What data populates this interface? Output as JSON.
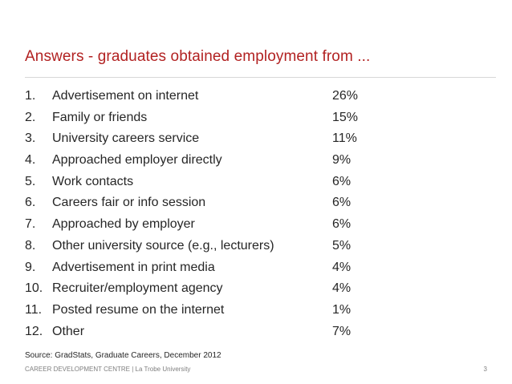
{
  "slide": {
    "title": "Answers - graduates obtained employment from ...",
    "items": [
      {
        "num": "1.",
        "label": "Advertisement on internet",
        "pct": "26%"
      },
      {
        "num": "2.",
        "label": "Family or friends",
        "pct": "15%"
      },
      {
        "num": "3.",
        "label": "University careers service",
        "pct": "11%"
      },
      {
        "num": "4.",
        "label": "Approached employer directly",
        "pct": "9%"
      },
      {
        "num": "5.",
        "label": "Work contacts",
        "pct": "6%"
      },
      {
        "num": "6.",
        "label": "Careers fair or info session",
        "pct": "6%"
      },
      {
        "num": "7.",
        "label": "Approached by employer",
        "pct": "6%"
      },
      {
        "num": "8.",
        "label": "Other university source (e.g., lecturers)",
        "pct": "5%"
      },
      {
        "num": "9.",
        "label": "Advertisement in print media",
        "pct": "4%"
      },
      {
        "num": "10.",
        "label": "Recruiter/employment agency",
        "pct": "4%"
      },
      {
        "num": "11.",
        "label": "Posted resume on the internet",
        "pct": "1%"
      },
      {
        "num": "12.",
        "label": "Other",
        "pct": "7%"
      }
    ],
    "source": "Source: GradStats, Graduate Careers, December 2012",
    "footer": "CAREER DEVELOPMENT CENTRE | La Trobe University",
    "page_number": "3"
  },
  "colors": {
    "title": "#b22222",
    "text": "#262626",
    "footer": "#7f7f7f"
  }
}
